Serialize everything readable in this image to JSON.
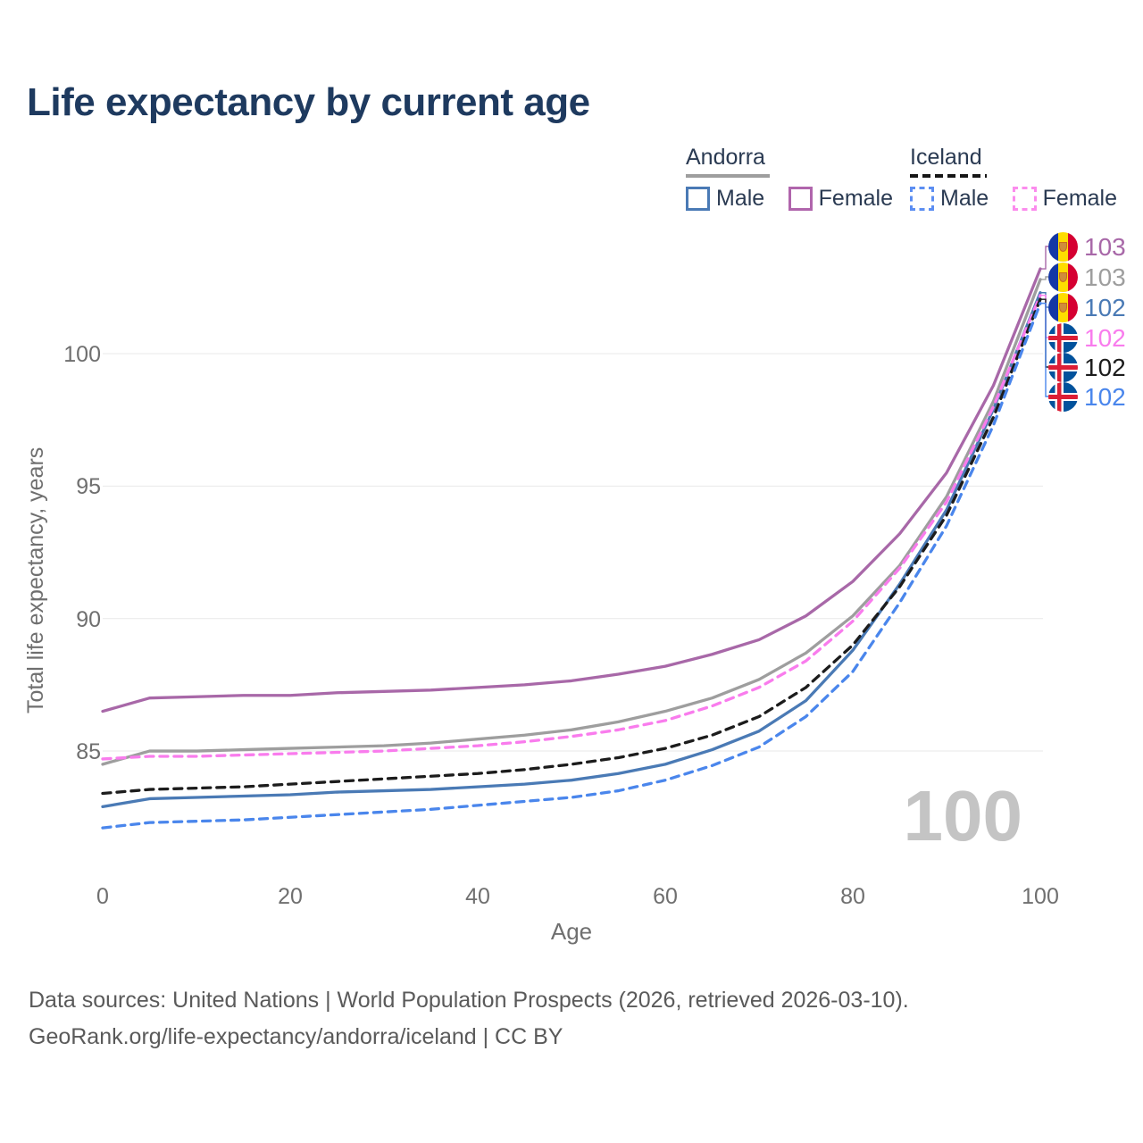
{
  "title": "Life expectancy by current age",
  "watermark": "100",
  "legend": {
    "groups": [
      {
        "country": "Andorra",
        "line_style": "solid",
        "underline_color": "#9e9e9e",
        "items": [
          {
            "label": "Male",
            "color": "#4a7ab5",
            "dashed": false
          },
          {
            "label": "Female",
            "color": "#b065ac",
            "dashed": false
          }
        ]
      },
      {
        "country": "Iceland",
        "line_style": "dashed",
        "underline_color": "#161616",
        "items": [
          {
            "label": "Male",
            "color": "#5c8ef2",
            "dashed": true
          },
          {
            "label": "Female",
            "color": "#fb8ced",
            "dashed": true
          }
        ]
      }
    ]
  },
  "axes": {
    "x": {
      "label": "Age",
      "tick_labels": [
        "0",
        "20",
        "40",
        "60",
        "80",
        "100"
      ]
    },
    "y": {
      "label": "Total life expectancy, years",
      "tick_labels": [
        "100",
        "95",
        "90",
        "85"
      ]
    }
  },
  "chart_data": {
    "type": "line",
    "title": "Life expectancy by current age",
    "xlabel": "Age",
    "ylabel": "Total life expectancy, years",
    "xlim": [
      0,
      100
    ],
    "x_ticks": [
      0,
      20,
      40,
      60,
      80,
      100
    ],
    "y_ticks": [
      85,
      90,
      95,
      100
    ],
    "grid": "horizontal",
    "legend_position": "top-right",
    "ages": [
      0,
      5,
      10,
      15,
      20,
      25,
      30,
      35,
      40,
      45,
      50,
      55,
      60,
      65,
      70,
      75,
      80,
      85,
      90,
      95,
      100
    ],
    "series": [
      {
        "name": "Andorra Female",
        "country": "Andorra",
        "sex": "Female",
        "style": "solid",
        "color": "#a868a8",
        "end_label": "103",
        "values": [
          86.5,
          87.0,
          87.05,
          87.1,
          87.1,
          87.2,
          87.25,
          87.3,
          87.4,
          87.5,
          87.65,
          87.9,
          88.2,
          88.65,
          89.2,
          90.1,
          91.4,
          93.2,
          95.5,
          98.8,
          103.2
        ]
      },
      {
        "name": "Andorra",
        "country": "Andorra",
        "sex": "Both",
        "style": "solid",
        "color": "#9e9e9e",
        "end_label": "103",
        "values": [
          84.5,
          85.0,
          85.0,
          85.05,
          85.1,
          85.15,
          85.2,
          85.3,
          85.45,
          85.6,
          85.8,
          86.1,
          86.5,
          87.0,
          87.7,
          88.7,
          90.1,
          92.0,
          94.6,
          98.2,
          102.8
        ]
      },
      {
        "name": "Andorra Male",
        "country": "Andorra",
        "sex": "Male",
        "style": "solid",
        "color": "#4a7ab5",
        "end_label": "102",
        "values": [
          82.9,
          83.2,
          83.25,
          83.3,
          83.35,
          83.45,
          83.5,
          83.55,
          83.65,
          83.75,
          83.9,
          84.15,
          84.5,
          85.05,
          85.75,
          86.9,
          88.8,
          91.3,
          94.1,
          97.9,
          102.3
        ]
      },
      {
        "name": "Iceland Female",
        "country": "Iceland",
        "sex": "Female",
        "style": "dashed",
        "color": "#f97ced",
        "end_label": "102",
        "values": [
          84.7,
          84.8,
          84.8,
          84.85,
          84.9,
          84.95,
          85.0,
          85.1,
          85.2,
          85.35,
          85.55,
          85.8,
          86.15,
          86.7,
          87.4,
          88.4,
          89.9,
          91.9,
          94.4,
          98.0,
          102.2
        ]
      },
      {
        "name": "Iceland",
        "country": "Iceland",
        "sex": "Both",
        "style": "dashed",
        "color": "#1c1c1c",
        "end_label": "102",
        "values": [
          83.4,
          83.55,
          83.6,
          83.65,
          83.75,
          83.85,
          83.95,
          84.05,
          84.15,
          84.3,
          84.5,
          84.75,
          85.1,
          85.6,
          86.3,
          87.4,
          89.0,
          91.2,
          93.9,
          97.6,
          102.05
        ]
      },
      {
        "name": "Iceland Male",
        "country": "Iceland",
        "sex": "Male",
        "style": "dashed",
        "color": "#4a86ec",
        "end_label": "102",
        "values": [
          82.1,
          82.3,
          82.35,
          82.4,
          82.5,
          82.6,
          82.7,
          82.8,
          82.95,
          83.1,
          83.25,
          83.5,
          83.9,
          84.45,
          85.15,
          86.3,
          88.0,
          90.6,
          93.5,
          97.3,
          101.9
        ]
      }
    ]
  },
  "footer": {
    "line1": "Data sources: United Nations | World Population Prospects (2026, retrieved 2026-03-10).",
    "line2": "GeoRank.org/life-expectancy/andorra/iceland | CC BY"
  }
}
